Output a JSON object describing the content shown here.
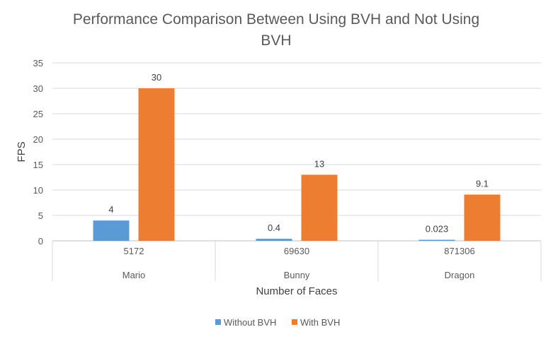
{
  "chart_data": {
    "type": "bar",
    "title": "Performance Comparison Between Using BVH and Not Using BVH",
    "title_lines": [
      "Performance Comparison Between Using BVH and Not Using",
      "BVH"
    ],
    "ylabel": "FPS",
    "xlabel": "Number of Faces",
    "ylim": [
      0,
      35
    ],
    "yticks": [
      "0",
      "5",
      "10",
      "15",
      "20",
      "25",
      "30",
      "35"
    ],
    "categories": [
      {
        "faces": "5172",
        "model": "Mario"
      },
      {
        "faces": "69630",
        "model": "Bunny"
      },
      {
        "faces": "871306",
        "model": "Dragon"
      }
    ],
    "series": [
      {
        "name": "Without BVH",
        "color": "#5b9bd5",
        "values": [
          4,
          0.4,
          0.023
        ],
        "labels": [
          "4",
          "0.4",
          "0.023"
        ]
      },
      {
        "name": "With BVH",
        "color": "#ed7d31",
        "values": [
          30,
          13,
          9.1
        ],
        "labels": [
          "30",
          "13",
          "9.1"
        ]
      }
    ],
    "grid": true,
    "legend_position": "bottom"
  }
}
